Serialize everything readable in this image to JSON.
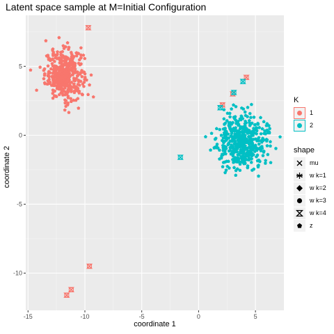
{
  "chart_data": {
    "type": "scatter",
    "title": "Latent space sample at M=Initial Configuration",
    "xlabel": "coordinate 1",
    "ylabel": "coordinate 2",
    "xlim": [
      -15.2,
      7.5
    ],
    "ylim": [
      -12.7,
      8.7
    ],
    "xticks": [
      -15,
      -10,
      -5,
      0,
      5
    ],
    "yticks": [
      -10,
      -5,
      0,
      5
    ],
    "grid": true,
    "panel_background": "#EBEBEB",
    "colors": {
      "1": "#F8766D",
      "2": "#00BFC4"
    },
    "legend_color": {
      "title": "K",
      "entries": [
        "1",
        "2"
      ],
      "placement": "right"
    },
    "legend_shape": {
      "title": "shape",
      "entries": [
        "mu",
        "w k=1",
        "w k=2",
        "w k=3",
        "w k=4",
        "z"
      ],
      "placement": "right"
    },
    "clusters": [
      {
        "K": "1",
        "shape": "z",
        "center": [
          -11.8,
          4.4
        ],
        "spread": [
          0.85,
          0.9
        ],
        "n": 420
      },
      {
        "K": "2",
        "shape": "z",
        "center": [
          3.8,
          -0.45
        ],
        "spread": [
          1.1,
          0.95
        ],
        "n": 520
      }
    ],
    "series": [
      {
        "K": "1",
        "shape": "mu",
        "points": [
          [
            -12.6,
            4.3
          ],
          [
            -11.5,
            4.6
          ]
        ]
      },
      {
        "K": "1",
        "shape": "w k=4",
        "points": [
          [
            -11.6,
            -11.6
          ],
          [
            -11.2,
            -11.2
          ],
          [
            -9.6,
            -9.5
          ],
          [
            -9.7,
            7.8
          ],
          [
            2.1,
            2.2
          ],
          [
            3.0,
            3.0
          ],
          [
            4.2,
            4.2
          ]
        ]
      },
      {
        "K": "2",
        "shape": "w k=4",
        "points": [
          [
            -1.6,
            -1.6
          ],
          [
            1.9,
            2.0
          ],
          [
            3.1,
            3.1
          ],
          [
            3.9,
            3.9
          ]
        ]
      },
      {
        "K": "2",
        "shape": "mu",
        "points": [
          [
            3.9,
            -0.4
          ],
          [
            4.2,
            -0.3
          ]
        ]
      }
    ]
  }
}
